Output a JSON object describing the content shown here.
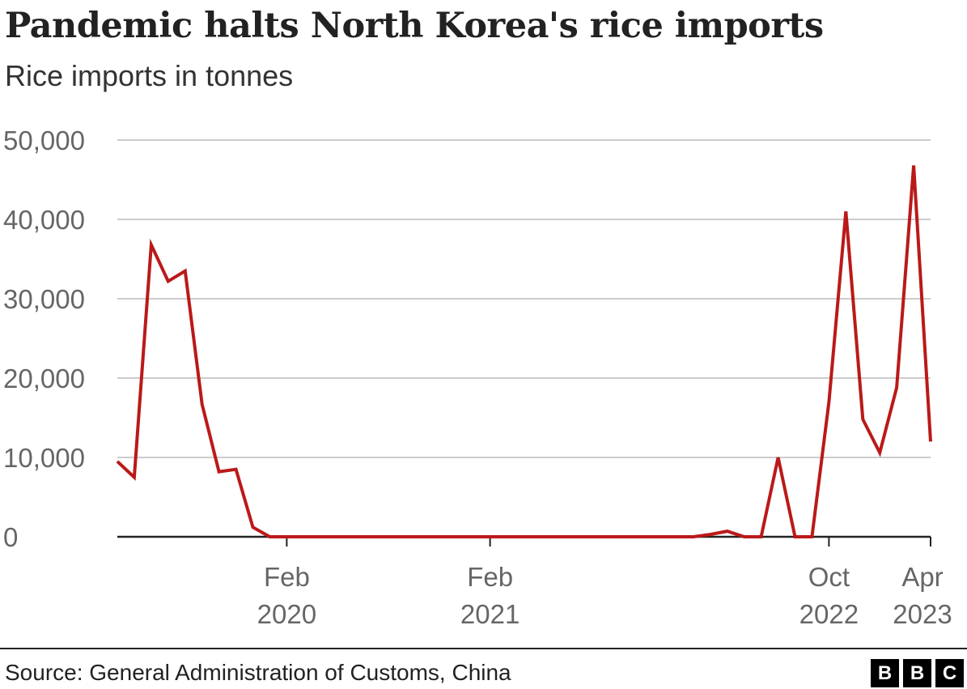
{
  "header": {
    "title": "Pandemic halts North Korea's rice imports",
    "subtitle": "Rice imports in tonnes"
  },
  "footer": {
    "source": "Source: General Administration of Customs, China",
    "logo_letters": [
      "B",
      "B",
      "C"
    ]
  },
  "colors": {
    "series": "#bb1919",
    "gridline": "#cccccc",
    "baseline": "#222222",
    "tick_text": "#666666"
  },
  "chart_data": {
    "type": "line",
    "title": "Pandemic halts North Korea's rice imports",
    "subtitle": "Rice imports in tonnes",
    "ylim": [
      0,
      50000
    ],
    "yticks": [
      0,
      10000,
      20000,
      30000,
      40000,
      50000
    ],
    "ytick_labels": [
      "0",
      "10,000",
      "20,000",
      "30,000",
      "40,000",
      "50,000"
    ],
    "xlim": [
      "2019-04",
      "2023-04"
    ],
    "xticks": [
      {
        "date": "2020-02",
        "line1": "Feb",
        "line2": "2020"
      },
      {
        "date": "2021-02",
        "line1": "Feb",
        "line2": "2021"
      },
      {
        "date": "2022-10",
        "line1": "Oct",
        "line2": "2022"
      },
      {
        "date": "2023-04",
        "line1": "Apr",
        "line2": "2023"
      }
    ],
    "grid": true,
    "legend": "none",
    "series": [
      {
        "x": [
          "2019-04",
          "2019-05",
          "2019-06",
          "2019-07",
          "2019-08",
          "2019-09",
          "2019-10",
          "2019-11",
          "2019-12",
          "2020-01",
          "2020-02",
          "2020-03",
          "2020-04",
          "2020-05",
          "2020-06",
          "2020-07",
          "2020-08",
          "2020-09",
          "2020-10",
          "2020-11",
          "2020-12",
          "2021-01",
          "2021-02",
          "2021-03",
          "2021-04",
          "2021-05",
          "2021-06",
          "2021-07",
          "2021-08",
          "2021-09",
          "2021-10",
          "2021-11",
          "2021-12",
          "2022-01",
          "2022-02",
          "2022-03",
          "2022-04",
          "2022-05",
          "2022-06",
          "2022-07",
          "2022-08",
          "2022-09",
          "2022-10",
          "2022-11",
          "2022-12",
          "2023-01",
          "2023-02",
          "2023-03",
          "2023-04"
        ],
        "values": [
          9500,
          7500,
          36800,
          32200,
          33500,
          16700,
          8200,
          8500,
          1200,
          0,
          0,
          0,
          0,
          0,
          0,
          0,
          0,
          0,
          0,
          0,
          0,
          0,
          0,
          0,
          0,
          0,
          0,
          0,
          0,
          0,
          0,
          0,
          0,
          0,
          0,
          300,
          700,
          0,
          0,
          10000,
          0,
          0,
          17000,
          41000,
          14800,
          10600,
          18800,
          46800,
          12000
        ]
      }
    ]
  }
}
